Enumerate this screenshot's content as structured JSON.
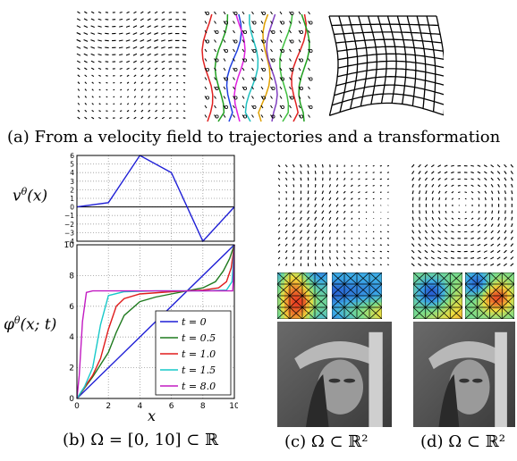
{
  "captions": {
    "a": "(a) From a velocity field to trajectories and a transformation",
    "b": "(b) Ω = [0, 10] ⊂ ℝ",
    "c": "(c) Ω ⊂ ℝ²",
    "d": "(d) Ω ⊂ ℝ²"
  },
  "labels": {
    "v_ylabel": "vθ(x)",
    "phi_ylabel": "φθ(x; t)",
    "xlabel": "x"
  },
  "chart_data": [
    {
      "type": "line",
      "xlim": [
        0,
        10
      ],
      "ylim": [
        -4,
        6
      ],
      "x_ticks": [
        0,
        2,
        4,
        6,
        8,
        10
      ],
      "y_ticks": [
        -4,
        -3,
        -2,
        -1,
        0,
        1,
        2,
        3,
        4,
        5,
        6
      ],
      "y_tick_labels": [
        "−4",
        "−3",
        "−2",
        "−1",
        "0",
        "1",
        "2",
        "3",
        "4",
        "5",
        "6"
      ],
      "grid": true,
      "series": [
        {
          "color": "#1f1fd6",
          "x": [
            0,
            2,
            4,
            6,
            8,
            10
          ],
          "y": [
            0,
            0.5,
            6,
            4,
            -4,
            0
          ]
        }
      ]
    },
    {
      "type": "line",
      "xlim": [
        0,
        10
      ],
      "ylim": [
        0,
        10
      ],
      "x_ticks": [
        0,
        2,
        4,
        6,
        8,
        10
      ],
      "y_ticks": [
        0,
        2,
        4,
        6,
        8,
        10
      ],
      "grid": true,
      "legend": "bottom-right",
      "series": [
        {
          "name": "t = 0",
          "color": "#1f1fd6",
          "x": [
            0,
            10
          ],
          "y": [
            0,
            10
          ]
        },
        {
          "name": "t = 0.5",
          "color": "#1f7a1f",
          "x": [
            0,
            1,
            2,
            2.5,
            3,
            4,
            5,
            6,
            7,
            8,
            8.8,
            9.3,
            9.7,
            10
          ],
          "y": [
            0,
            1.4,
            3.0,
            4.3,
            5.4,
            6.3,
            6.6,
            6.8,
            7.0,
            7.2,
            7.6,
            8.3,
            9.1,
            10
          ]
        },
        {
          "name": "t = 1.0",
          "color": "#e01b1b",
          "x": [
            0,
            1,
            1.5,
            2,
            2.5,
            3,
            4,
            6,
            8,
            9,
            9.5,
            9.8,
            10
          ],
          "y": [
            0,
            1.5,
            2.6,
            4.5,
            6.0,
            6.5,
            6.8,
            6.95,
            7.05,
            7.2,
            7.6,
            8.5,
            10
          ]
        },
        {
          "name": "t = 1.5",
          "color": "#17c9c9",
          "x": [
            0,
            0.5,
            1,
            1.5,
            2,
            3,
            5,
            8,
            9.5,
            9.85,
            10
          ],
          "y": [
            0,
            0.8,
            2.0,
            4.8,
            6.7,
            6.95,
            7.0,
            7.0,
            7.05,
            7.6,
            10
          ]
        },
        {
          "name": "t = 8.0",
          "color": "#c21bc2",
          "x": [
            0,
            0.15,
            0.35,
            0.6,
            1,
            5,
            9.9,
            9.95,
            10
          ],
          "y": [
            0,
            1.5,
            5.0,
            6.9,
            7.0,
            7.0,
            7.0,
            8.0,
            10
          ]
        }
      ]
    }
  ]
}
